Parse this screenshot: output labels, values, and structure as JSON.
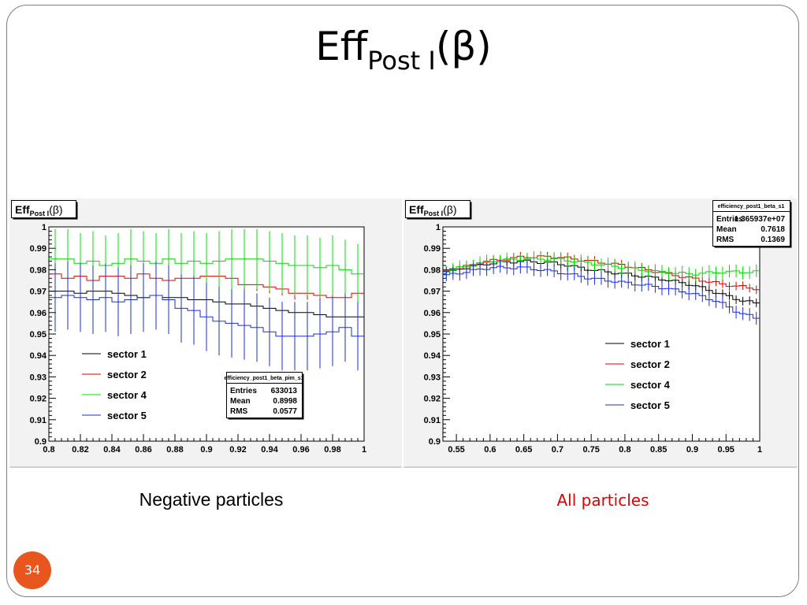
{
  "slide": {
    "title_main": "Eff",
    "title_sub": "Post I",
    "title_tail": "(β)",
    "page_number": "34"
  },
  "colors": {
    "sector1": "#000000",
    "sector2": "#e00000",
    "sector4": "#00dd00",
    "sector5": "#1a2be0",
    "page_badge": "#e8561e"
  },
  "chart_data": [
    {
      "type": "line",
      "caption": "Negative particles",
      "title_main": "Eff",
      "title_sub": "Post I",
      "title_tail": "(β)",
      "xlim": [
        0.8,
        1.0
      ],
      "ylim": [
        0.9,
        1.0
      ],
      "xticks": [
        "0.8",
        "0.82",
        "0.84",
        "0.86",
        "0.88",
        "0.9",
        "0.92",
        "0.94",
        "0.96",
        "0.98",
        "1"
      ],
      "yticks": [
        "0.9",
        "0.91",
        "0.92",
        "0.93",
        "0.94",
        "0.95",
        "0.96",
        "0.97",
        "0.98",
        "0.99",
        "1"
      ],
      "bins": 25,
      "stats": {
        "name": "efficiency_post1_beta_pim_s1",
        "rows": [
          [
            "Entries",
            "633013"
          ],
          [
            "Mean",
            "0.8998"
          ],
          [
            "RMS",
            "0.0577"
          ]
        ]
      },
      "legend": [
        "sector 1",
        "sector 2",
        "sector 4",
        "sector 5"
      ],
      "series": [
        {
          "name": "sector 1",
          "color": "#000000",
          "values": [
            0.97,
            0.97,
            0.969,
            0.97,
            0.97,
            0.969,
            0.968,
            0.967,
            0.968,
            0.967,
            0.967,
            0.966,
            0.966,
            0.965,
            0.964,
            0.964,
            0.963,
            0.962,
            0.961,
            0.96,
            0.96,
            0.959,
            0.958,
            0.958,
            0.958
          ],
          "errors": [
            0.004,
            0.004,
            0.004,
            0.004,
            0.004,
            0.004,
            0.004,
            0.004,
            0.004,
            0.004,
            0.004,
            0.004,
            0.004,
            0.004,
            0.004,
            0.004,
            0.004,
            0.004,
            0.004,
            0.004,
            0.004,
            0.004,
            0.004,
            0.004,
            0.004
          ]
        },
        {
          "name": "sector 2",
          "color": "#e00000",
          "values": [
            0.978,
            0.976,
            0.977,
            0.975,
            0.977,
            0.977,
            0.976,
            0.978,
            0.976,
            0.975,
            0.976,
            0.976,
            0.977,
            0.977,
            0.976,
            0.973,
            0.973,
            0.972,
            0.971,
            0.969,
            0.969,
            0.968,
            0.967,
            0.967,
            0.969
          ],
          "errors": [
            0.003,
            0.003,
            0.003,
            0.003,
            0.003,
            0.003,
            0.003,
            0.003,
            0.003,
            0.003,
            0.003,
            0.003,
            0.003,
            0.003,
            0.003,
            0.003,
            0.003,
            0.003,
            0.003,
            0.003,
            0.003,
            0.003,
            0.003,
            0.003,
            0.003
          ]
        },
        {
          "name": "sector 4",
          "color": "#00dd00",
          "values": [
            0.985,
            0.985,
            0.983,
            0.984,
            0.982,
            0.983,
            0.985,
            0.984,
            0.983,
            0.985,
            0.983,
            0.984,
            0.983,
            0.984,
            0.985,
            0.985,
            0.985,
            0.984,
            0.983,
            0.982,
            0.982,
            0.981,
            0.982,
            0.98,
            0.978
          ],
          "errors": [
            0.014,
            0.014,
            0.014,
            0.014,
            0.014,
            0.014,
            0.014,
            0.014,
            0.014,
            0.014,
            0.014,
            0.014,
            0.014,
            0.014,
            0.014,
            0.014,
            0.014,
            0.014,
            0.014,
            0.014,
            0.014,
            0.014,
            0.014,
            0.014,
            0.014
          ]
        },
        {
          "name": "sector 5",
          "color": "#1a2be0",
          "values": [
            0.967,
            0.968,
            0.967,
            0.966,
            0.967,
            0.965,
            0.966,
            0.967,
            0.968,
            0.966,
            0.962,
            0.961,
            0.958,
            0.956,
            0.955,
            0.954,
            0.953,
            0.951,
            0.949,
            0.949,
            0.949,
            0.95,
            0.951,
            0.953,
            0.949
          ],
          "errors": [
            0.016,
            0.016,
            0.016,
            0.016,
            0.016,
            0.016,
            0.016,
            0.016,
            0.016,
            0.016,
            0.016,
            0.016,
            0.016,
            0.016,
            0.016,
            0.016,
            0.016,
            0.016,
            0.016,
            0.016,
            0.016,
            0.016,
            0.016,
            0.016,
            0.016
          ]
        }
      ]
    },
    {
      "type": "line",
      "caption": "All particles",
      "title_main": "Eff",
      "title_sub": "Post I",
      "title_tail": "(β)",
      "xlim": [
        0.53,
        1.0
      ],
      "ylim": [
        0.9,
        1.0
      ],
      "xticks_values": [
        0.55,
        0.6,
        0.65,
        0.7,
        0.75,
        0.8,
        0.85,
        0.9,
        0.95,
        1.0
      ],
      "xticks": [
        "0.55",
        "0.6",
        "0.65",
        "0.7",
        "0.75",
        "0.8",
        "0.85",
        "0.9",
        "0.95",
        "1"
      ],
      "yticks": [
        "0.9",
        "0.91",
        "0.92",
        "0.93",
        "0.94",
        "0.95",
        "0.96",
        "0.97",
        "0.98",
        "0.99",
        "1"
      ],
      "bins": 47,
      "stats": {
        "name": "efficiency_post1_beta_s1",
        "rows": [
          [
            "Entries",
            "1.365937e+07"
          ],
          [
            "Mean",
            "0.7618"
          ],
          [
            "RMS",
            "0.1369"
          ]
        ]
      },
      "legend": [
        "sector 1",
        "sector 2",
        "sector 4",
        "sector 5"
      ],
      "series": [
        {
          "name": "sector 1",
          "color": "#000000",
          "anchors_x": [
            0.53,
            0.6,
            0.65,
            0.7,
            0.75,
            0.8,
            0.85,
            0.9,
            0.93,
            0.97,
            1.0
          ],
          "anchors_y": [
            0.979,
            0.983,
            0.984,
            0.983,
            0.98,
            0.978,
            0.976,
            0.973,
            0.97,
            0.966,
            0.964
          ],
          "error": 0.002
        },
        {
          "name": "sector 2",
          "color": "#e00000",
          "anchors_x": [
            0.53,
            0.6,
            0.65,
            0.7,
            0.75,
            0.8,
            0.85,
            0.9,
            0.95,
            1.0
          ],
          "anchors_y": [
            0.979,
            0.984,
            0.986,
            0.986,
            0.984,
            0.982,
            0.979,
            0.976,
            0.973,
            0.971
          ],
          "error": 0.002
        },
        {
          "name": "sector 4",
          "color": "#00dd00",
          "anchors_x": [
            0.53,
            0.6,
            0.65,
            0.7,
            0.75,
            0.8,
            0.85,
            0.9,
            0.95,
            1.0
          ],
          "anchors_y": [
            0.979,
            0.984,
            0.985,
            0.985,
            0.983,
            0.981,
            0.979,
            0.978,
            0.979,
            0.979
          ],
          "error": 0.003
        },
        {
          "name": "sector 5",
          "color": "#1a2be0",
          "anchors_x": [
            0.53,
            0.6,
            0.65,
            0.7,
            0.75,
            0.8,
            0.85,
            0.9,
            0.94,
            0.97,
            1.0
          ],
          "anchors_y": [
            0.977,
            0.981,
            0.981,
            0.979,
            0.976,
            0.974,
            0.972,
            0.969,
            0.965,
            0.96,
            0.957
          ],
          "error": 0.003
        }
      ]
    }
  ]
}
